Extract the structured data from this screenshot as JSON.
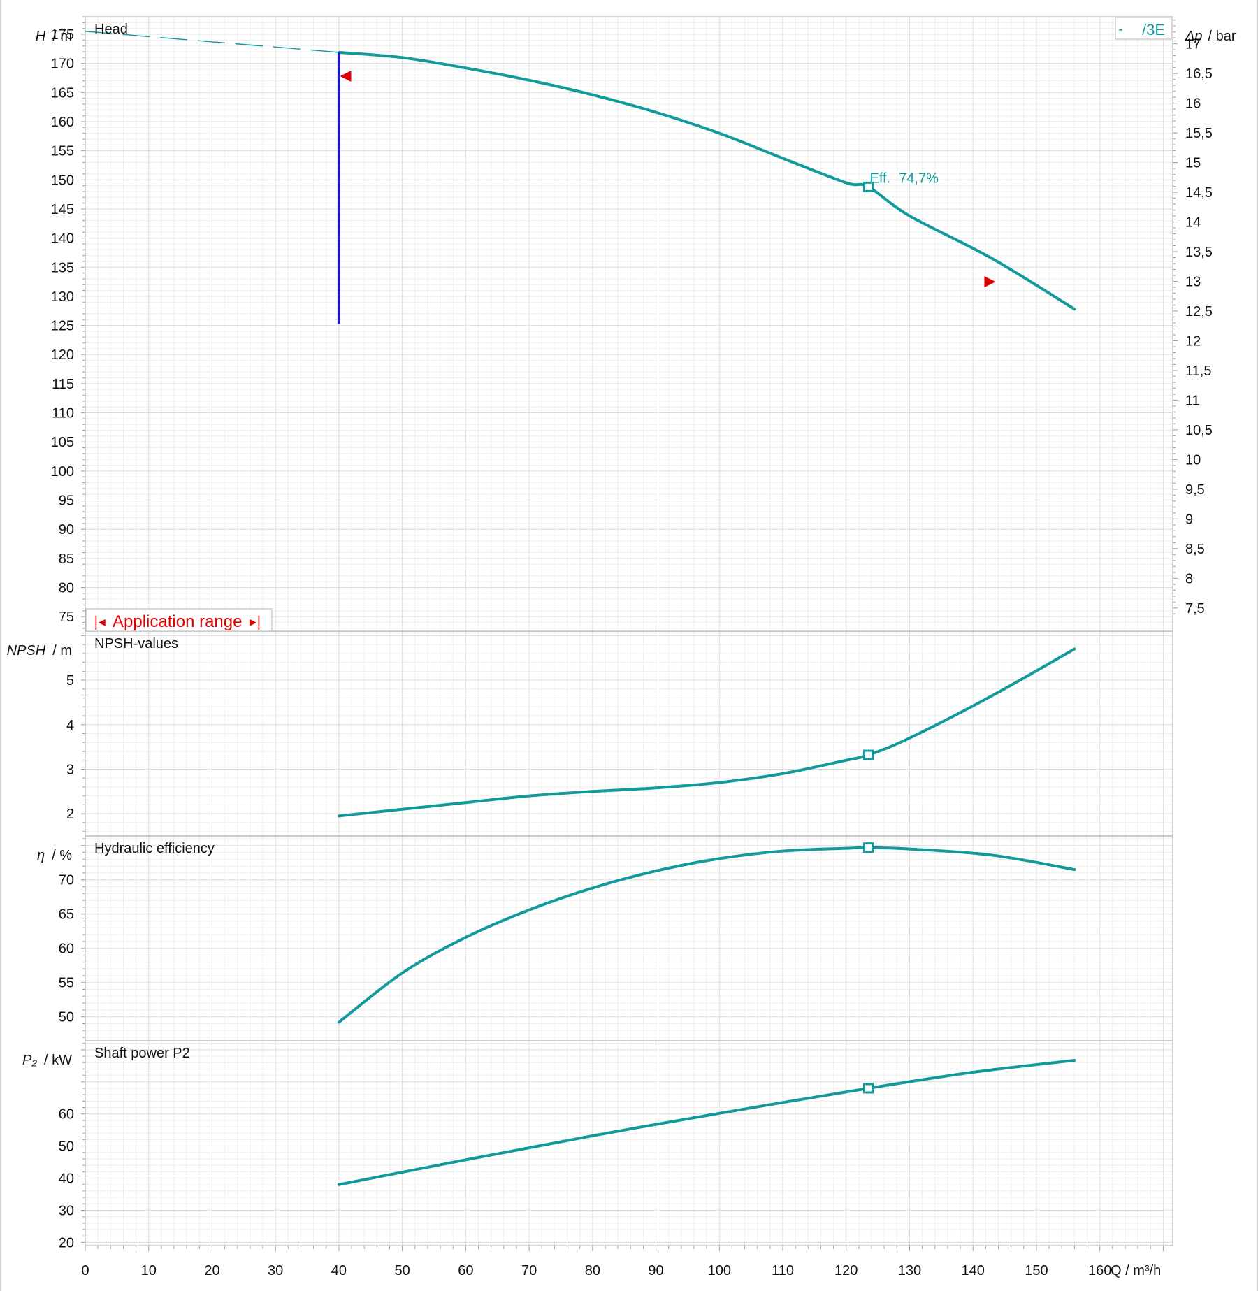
{
  "colors": {
    "curve": "#12999b",
    "limit_line": "#1a1ac8",
    "marker_red": "#e00000",
    "grid_minor": "#eeeeee",
    "grid_major": "#dcdcdc",
    "frame": "#b5b5b5"
  },
  "legend": {
    "dash": "-",
    "label": "/3E"
  },
  "application_range": {
    "label": "Application range",
    "left_arrow": "|◂",
    "right_arrow": "▸|"
  },
  "chart_data": [
    {
      "id": "head",
      "type": "line",
      "title": "Head",
      "ylabel": "H / m",
      "ylabel_var": "H",
      "ylabel_unit": "/ m",
      "ylim": [
        72.5,
        178
      ],
      "yticks": [
        75,
        80,
        85,
        90,
        95,
        100,
        105,
        110,
        115,
        120,
        125,
        130,
        135,
        140,
        145,
        150,
        155,
        160,
        165,
        170,
        175
      ],
      "y2label": "Δp / bar",
      "y2label_var": "Δp",
      "y2label_unit": "/ bar",
      "y2_scale_per_m": 0.09806,
      "y2ticks": [
        "7,5",
        "8",
        "8,5",
        "9",
        "9,5",
        "10",
        "10,5",
        "11",
        "11,5",
        "12",
        "12,5",
        "13",
        "13,5",
        "14",
        "14,5",
        "15",
        "15,5",
        "16",
        "16,5",
        "17"
      ],
      "y2tick_values": [
        7.5,
        8,
        8.5,
        9,
        9.5,
        10,
        10.5,
        11,
        11.5,
        12,
        12.5,
        13,
        13.5,
        14,
        14.5,
        15,
        15.5,
        16,
        16.5,
        17
      ],
      "series": [
        {
          "style": "dashed",
          "x": [
            0,
            40
          ],
          "y": [
            175.5,
            171.9
          ]
        },
        {
          "style": "solid",
          "x": [
            40,
            50,
            60,
            70,
            80,
            90,
            100,
            110,
            120,
            123.5,
            130,
            143,
            156
          ],
          "y": [
            171.9,
            171.0,
            169.2,
            167.1,
            164.6,
            161.6,
            158.0,
            153.7,
            149.5,
            148.8,
            143.8,
            136.5,
            127.8
          ]
        }
      ],
      "vline": {
        "x": 40,
        "y": [
          125.3,
          171.9
        ]
      },
      "markers": [
        {
          "kind": "square",
          "x": 123.5,
          "y": 148.8
        },
        {
          "kind": "red-left",
          "x": 40.5,
          "y": 167.8
        },
        {
          "kind": "red-right",
          "x": 143,
          "y": 132.5
        }
      ],
      "annotation": {
        "label": "Eff.",
        "value": "74,7%",
        "x": 123.5,
        "y": 148.8
      }
    },
    {
      "id": "npsh",
      "type": "line",
      "title": "NPSH-values",
      "ylabel": "NPSH / m",
      "ylabel_var": "NPSH",
      "ylabel_unit": "/ m",
      "ylim": [
        1.5,
        6.1
      ],
      "yticks": [
        2,
        3,
        4,
        5
      ],
      "series": [
        {
          "style": "solid",
          "x": [
            40,
            50,
            60,
            70,
            80,
            90,
            100,
            110,
            120,
            123.5,
            130,
            143,
            156
          ],
          "y": [
            1.95,
            2.1,
            2.25,
            2.4,
            2.5,
            2.58,
            2.7,
            2.9,
            3.2,
            3.32,
            3.7,
            4.65,
            5.7
          ]
        }
      ],
      "markers": [
        {
          "kind": "square",
          "x": 123.5,
          "y": 3.32
        }
      ]
    },
    {
      "id": "efficiency",
      "type": "line",
      "title": "Hydraulic efficiency",
      "ylabel": "η / %",
      "ylabel_var": "η",
      "ylabel_unit": "/ %",
      "ylim": [
        46.5,
        76.4
      ],
      "yticks": [
        50,
        55,
        60,
        65,
        70
      ],
      "series": [
        {
          "style": "solid",
          "x": [
            40,
            50,
            60,
            70,
            80,
            90,
            100,
            110,
            120,
            123.5,
            130,
            143,
            156
          ],
          "y": [
            49.2,
            56.4,
            61.6,
            65.6,
            68.8,
            71.3,
            73.1,
            74.2,
            74.6,
            74.7,
            74.5,
            73.6,
            71.5
          ]
        }
      ],
      "markers": [
        {
          "kind": "square",
          "x": 123.5,
          "y": 74.7
        }
      ]
    },
    {
      "id": "power",
      "type": "line",
      "title": "Shaft power P2",
      "ylabel": "P₂ / kW",
      "ylabel_var": "P₂",
      "ylabel_unit": "/ kW",
      "ylim": [
        19,
        82.8
      ],
      "yticks": [
        20,
        30,
        40,
        50,
        60
      ],
      "series": [
        {
          "style": "solid",
          "x": [
            40,
            60,
            80,
            100,
            123.5,
            140,
            156
          ],
          "y": [
            38,
            45.7,
            53.2,
            60.2,
            68.0,
            73.0,
            76.7
          ]
        }
      ],
      "markers": [
        {
          "kind": "square",
          "x": 123.5,
          "y": 68.0
        }
      ]
    }
  ],
  "x_axis": {
    "label": "Q / m³/h",
    "xlim": [
      0,
      171.5
    ],
    "ticks": [
      "0",
      "10",
      "20",
      "30",
      "40",
      "50",
      "60",
      "70",
      "80",
      "90",
      "100",
      "110",
      "120",
      "130",
      "140",
      "150",
      "160"
    ],
    "tick_values": [
      0,
      10,
      20,
      30,
      40,
      50,
      60,
      70,
      80,
      90,
      100,
      110,
      120,
      130,
      140,
      150,
      160
    ]
  }
}
